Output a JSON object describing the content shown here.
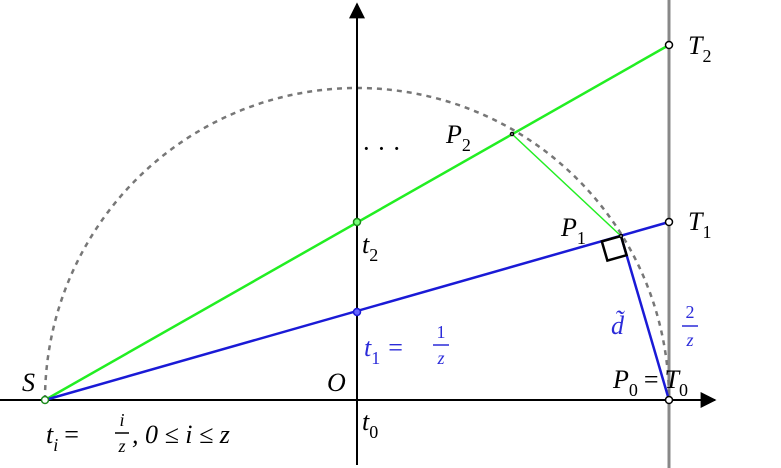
{
  "labels": {
    "s": "S",
    "o": "O",
    "t_cap_2": [
      "T",
      "2"
    ],
    "t_cap_1": [
      "T",
      "1"
    ],
    "p2": [
      "P",
      "2"
    ],
    "p1": [
      "P",
      "1"
    ],
    "p0_eq_t0": [
      "P",
      "0",
      "=",
      "T",
      "0"
    ],
    "ellipsis": "· · ·",
    "t2": [
      "t",
      "2"
    ],
    "t0": [
      "t",
      "0"
    ],
    "t1": {
      "lhs": [
        "t",
        "1",
        "="
      ],
      "num": "1",
      "den": "z"
    },
    "d": "d̃",
    "two_over_z": {
      "num": "2",
      "den": "z"
    },
    "ti": {
      "lhs": [
        "t",
        "i",
        "="
      ],
      "num": "i",
      "den": "z",
      "rhs": ", 0 ≤ i ≤ z"
    }
  }
}
